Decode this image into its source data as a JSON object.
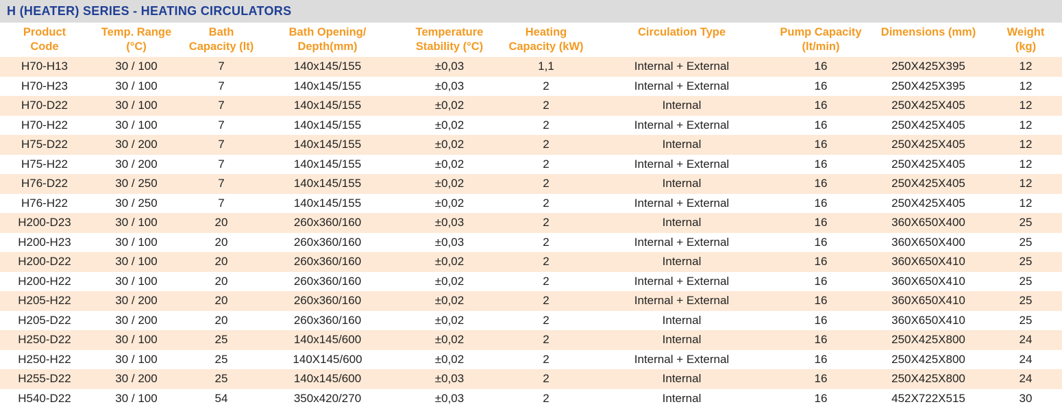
{
  "title": "H (HEATER) SERIES - HEATING CIRCULATORS",
  "colors": {
    "title_text": "#1f3f95",
    "title_background": "#dcdcdc",
    "header_text": "#f39a22",
    "stripe_row": "#fde9d6"
  },
  "table": {
    "headers": [
      {
        "line1": "Product",
        "line2": "Code"
      },
      {
        "line1": "Temp. Range",
        "line2": "(°C)"
      },
      {
        "line1": "Bath",
        "line2": "Capacity (lt)"
      },
      {
        "line1": "Bath Opening/",
        "line2": "Depth(mm)"
      },
      {
        "line1": "Temperature",
        "line2": "Stability (°C)"
      },
      {
        "line1": "Heating",
        "line2": "Capacity (kW)"
      },
      {
        "line1": "Circulation Type",
        "line2": ""
      },
      {
        "line1": "Pump Capacity",
        "line2": "(lt/min)"
      },
      {
        "line1": "Dimensions (mm)",
        "line2": ""
      },
      {
        "line1": "Weight",
        "line2": "(kg)"
      }
    ],
    "rows": [
      [
        "H70-H13",
        "30 / 100",
        "7",
        "140x145/155",
        "±0,03",
        "1,1",
        "Internal + External",
        "16",
        "250X425X395",
        "12"
      ],
      [
        "H70-H23",
        "30 / 100",
        "7",
        "140x145/155",
        "±0,03",
        "2",
        "Internal + External",
        "16",
        "250X425X395",
        "12"
      ],
      [
        "H70-D22",
        "30 / 100",
        "7",
        "140x145/155",
        "±0,02",
        "2",
        "Internal",
        "16",
        "250X425X405",
        "12"
      ],
      [
        "H70-H22",
        "30 / 100",
        "7",
        "140x145/155",
        "±0,02",
        "2",
        "Internal + External",
        "16",
        "250X425X405",
        "12"
      ],
      [
        "H75-D22",
        "30 / 200",
        "7",
        "140x145/155",
        "±0,02",
        "2",
        "Internal",
        "16",
        "250X425X405",
        "12"
      ],
      [
        "H75-H22",
        "30 / 200",
        "7",
        "140x145/155",
        "±0,02",
        "2",
        "Internal + External",
        "16",
        "250X425X405",
        "12"
      ],
      [
        "H76-D22",
        "30 / 250",
        "7",
        "140x145/155",
        "±0,02",
        "2",
        "Internal",
        "16",
        "250X425X405",
        "12"
      ],
      [
        "H76-H22",
        "30 / 250",
        "7",
        "140x145/155",
        "±0,02",
        "2",
        "Internal + External",
        "16",
        "250X425X405",
        "12"
      ],
      [
        "H200-D23",
        "30 / 100",
        "20",
        "260x360/160",
        "±0,03",
        "2",
        "Internal",
        "16",
        "360X650X400",
        "25"
      ],
      [
        "H200-H23",
        "30 / 100",
        "20",
        "260x360/160",
        "±0,03",
        "2",
        "Internal + External",
        "16",
        "360X650X400",
        "25"
      ],
      [
        "H200-D22",
        "30 / 100",
        "20",
        "260x360/160",
        "±0,02",
        "2",
        "Internal",
        "16",
        "360X650X410",
        "25"
      ],
      [
        "H200-H22",
        "30 / 100",
        "20",
        "260x360/160",
        "±0,02",
        "2",
        "Internal + External",
        "16",
        "360X650X410",
        "25"
      ],
      [
        "H205-H22",
        "30 / 200",
        "20",
        "260x360/160",
        "±0,02",
        "2",
        "Internal + External",
        "16",
        "360X650X410",
        "25"
      ],
      [
        "H205-D22",
        "30 / 200",
        "20",
        "260x360/160",
        "±0,02",
        "2",
        "Internal",
        "16",
        "360X650X410",
        "25"
      ],
      [
        "H250-D22",
        "30 / 100",
        "25",
        "140x145/600",
        "±0,02",
        "2",
        "Internal",
        "16",
        "250X425X800",
        "24"
      ],
      [
        "H250-H22",
        "30 / 100",
        "25",
        "140X145/600",
        "±0,02",
        "2",
        "Internal + External",
        "16",
        "250X425X800",
        "24"
      ],
      [
        "H255-D22",
        "30 / 200",
        "25",
        "140x145/600",
        "±0,03",
        "2",
        "Internal",
        "16",
        "250X425X800",
        "24"
      ],
      [
        "H540-D22",
        "30 / 100",
        "54",
        "350x420/270",
        "±0,03",
        "2",
        "Internal",
        "16",
        "452X722X515",
        "30"
      ]
    ]
  }
}
